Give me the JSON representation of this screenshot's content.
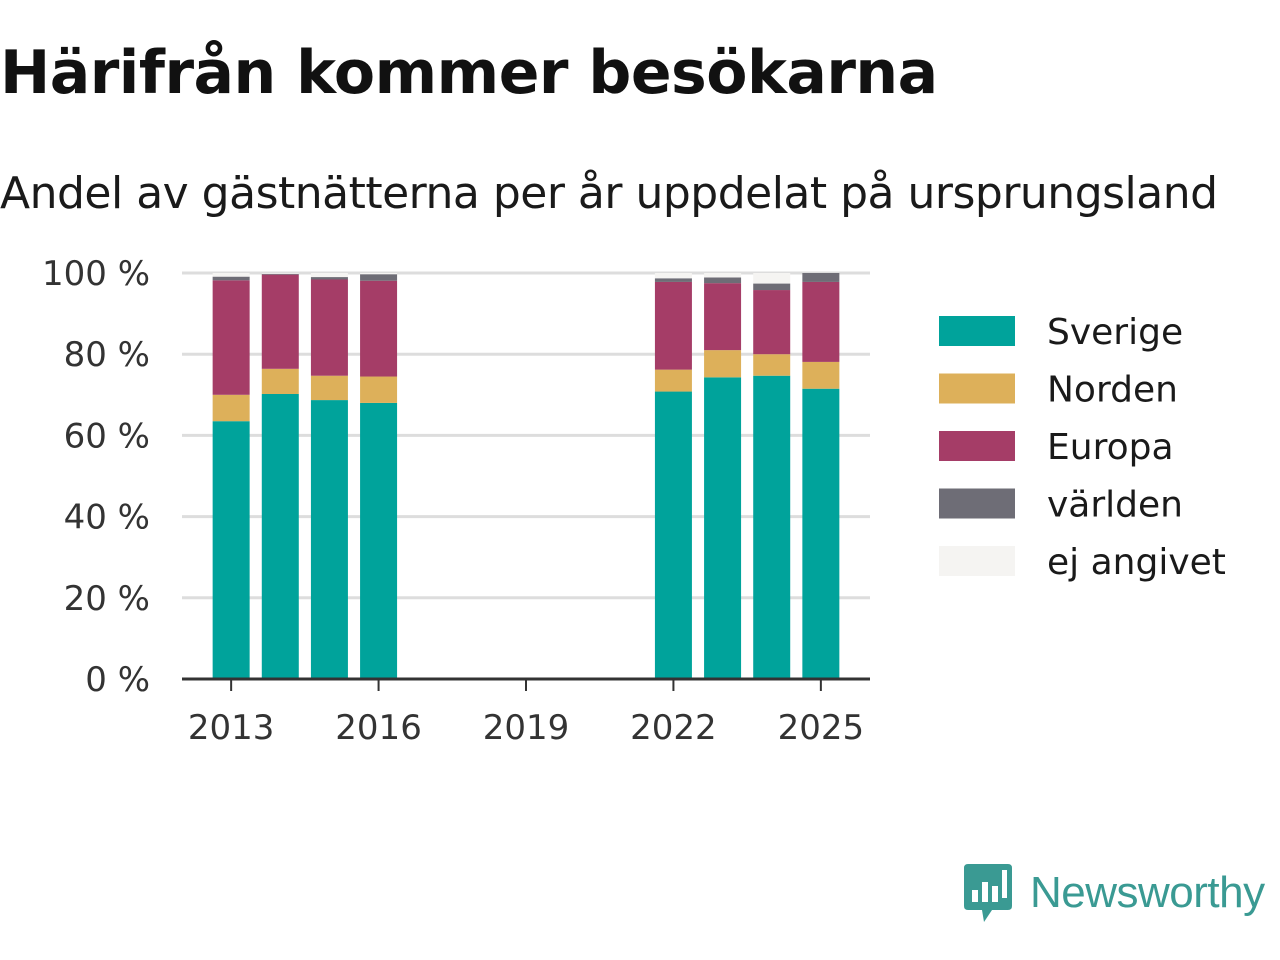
{
  "title": "Härifrån kommer besökarna",
  "subtitle": "Andel av gästnätterna per år uppdelat på ursprungsland",
  "brand": "Newsworthy",
  "colors": {
    "Sverige": "#00a39b",
    "Norden": "#ddb05a",
    "Europa": "#a53d67",
    "världen": "#6e6d76",
    "ej angivet": "#f5f4f2",
    "brand": "#3a9a93"
  },
  "chart_data": {
    "type": "bar",
    "stacked": true,
    "categories": [
      2013,
      2014,
      2015,
      2016,
      2022,
      2023,
      2024,
      2025
    ],
    "x_ticks": [
      "2013",
      "2016",
      "2019",
      "2022",
      "2025"
    ],
    "xlim": [
      2012,
      2026
    ],
    "ylim": [
      0,
      100
    ],
    "y_ticks": [
      "0 %",
      "20 %",
      "40 %",
      "60 %",
      "80 %",
      "100 %"
    ],
    "y_unit": "%",
    "grid": true,
    "legend_position": "right",
    "series": [
      {
        "name": "Sverige",
        "values": [
          63.5,
          70.2,
          68.7,
          68.0,
          70.8,
          74.3,
          74.7,
          71.5
        ]
      },
      {
        "name": "Norden",
        "values": [
          6.5,
          6.2,
          6.0,
          6.5,
          5.4,
          6.7,
          5.3,
          6.6
        ]
      },
      {
        "name": "Europa",
        "values": [
          28.2,
          23.2,
          23.7,
          23.6,
          21.6,
          16.5,
          15.8,
          19.7
        ]
      },
      {
        "name": "världen",
        "values": [
          0.9,
          0.2,
          0.6,
          1.6,
          0.9,
          1.4,
          1.6,
          2.2
        ]
      },
      {
        "name": "ej angivet",
        "values": [
          0.9,
          0.2,
          1.0,
          0.3,
          1.3,
          1.1,
          2.6,
          0.0
        ]
      }
    ]
  }
}
